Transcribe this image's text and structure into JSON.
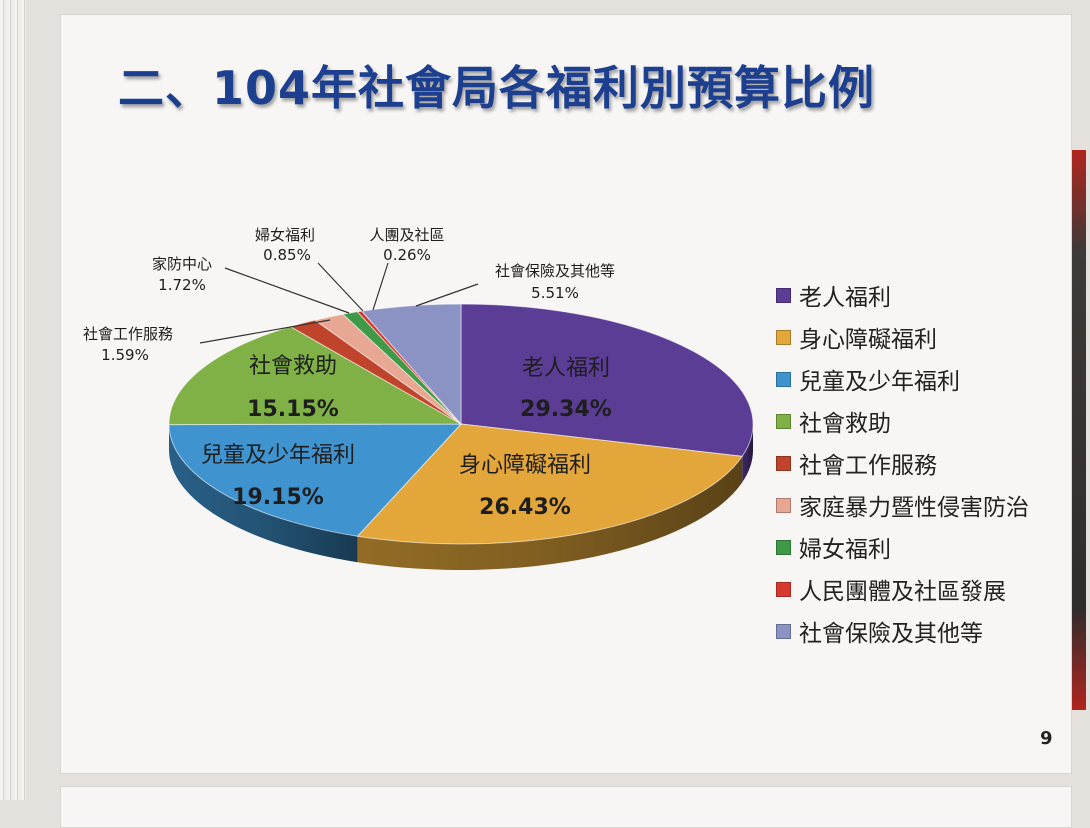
{
  "slide": {
    "title": "二、104年社會局各福利別預算比例",
    "page_number": "9"
  },
  "chart_data": {
    "type": "pie",
    "title": "二、104年社會局各福利別預算比例",
    "legend_position": "right",
    "series": [
      {
        "name": "老人福利",
        "value": 29.34,
        "value_label": "29.34%",
        "color": "#5b3d96",
        "data_label": "老人福利"
      },
      {
        "name": "身心障礙福利",
        "value": 26.43,
        "value_label": "26.43%",
        "color": "#e3a63a",
        "data_label": "身心障礙福利"
      },
      {
        "name": "兒童及少年福利",
        "value": 19.15,
        "value_label": "19.15%",
        "color": "#3f93cf",
        "data_label": "兒童及少年福利"
      },
      {
        "name": "社會救助",
        "value": 15.15,
        "value_label": "15.15%",
        "color": "#7fb146",
        "data_label": "社會救助"
      },
      {
        "name": "社會工作服務",
        "value": 1.59,
        "value_label": "1.59%",
        "color": "#c0442b",
        "data_label": "社會工作服務"
      },
      {
        "name": "家庭暴力暨性侵害防治",
        "value": 1.72,
        "value_label": "1.72%",
        "color": "#e8a792",
        "data_label": "家防中心"
      },
      {
        "name": "婦女福利",
        "value": 0.85,
        "value_label": "0.85%",
        "color": "#3f9a48",
        "data_label": "婦女福利"
      },
      {
        "name": "人民團體及社區發展",
        "value": 0.26,
        "value_label": "0.26%",
        "color": "#d9382f",
        "data_label": "人團及社區"
      },
      {
        "name": "社會保險及其他等",
        "value": 5.51,
        "value_label": "5.51%",
        "color": "#8b92c4",
        "data_label": "社會保險及其他等"
      }
    ]
  }
}
